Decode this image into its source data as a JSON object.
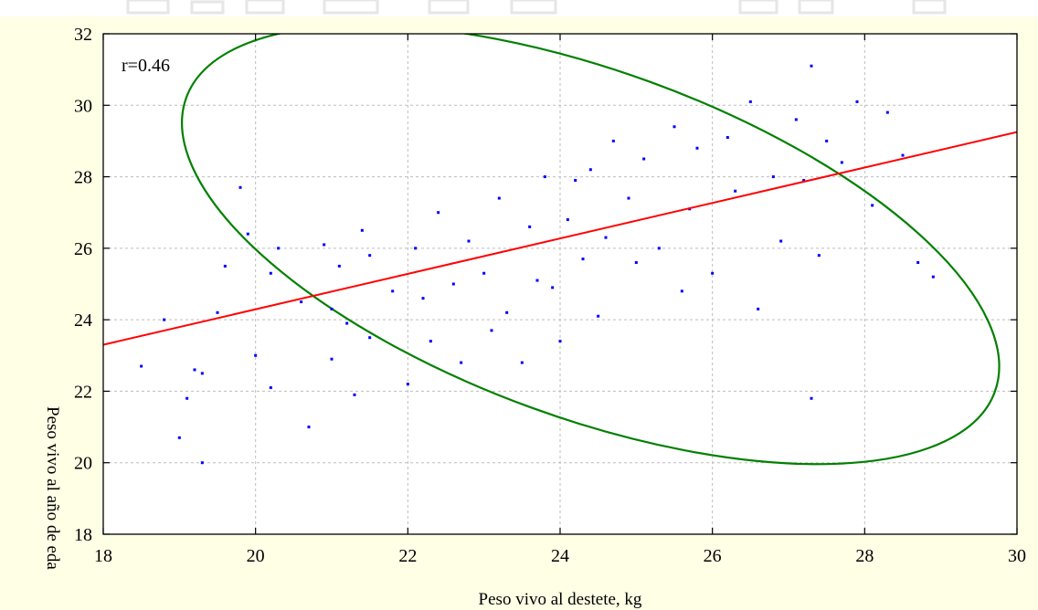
{
  "chart_data": {
    "type": "scatter",
    "xlabel": "Peso vivo al destete, kg",
    "ylabel": "Peso vivo al año de eda",
    "annotation": "r=0.46",
    "xlim": [
      18,
      30
    ],
    "ylim": [
      18,
      32
    ],
    "xticks": [
      18,
      20,
      22,
      24,
      26,
      28,
      30
    ],
    "yticks": [
      18,
      20,
      22,
      24,
      26,
      28,
      30,
      32
    ],
    "grid": true,
    "colors": {
      "points": "#0000ff",
      "regression": "#ff0000",
      "ellipse": "#008000",
      "background": "#ffffe6",
      "plot_area": "#ffffff"
    },
    "regression_line": {
      "x": [
        18,
        30
      ],
      "y": [
        23.3,
        29.25
      ]
    },
    "confidence_ellipse": {
      "center": [
        24.4,
        26.1
      ],
      "semi_x": 5.65,
      "semi_y": 4.85,
      "angle_deg": 20,
      "level": "95%"
    },
    "points": {
      "x": [
        18.5,
        18.8,
        19.0,
        19.1,
        19.2,
        19.3,
        19.3,
        19.5,
        19.6,
        19.8,
        19.9,
        20.0,
        20.2,
        20.2,
        20.3,
        20.6,
        20.7,
        20.9,
        21.0,
        21.0,
        21.1,
        21.2,
        21.3,
        21.4,
        21.5,
        21.5,
        21.8,
        22.0,
        22.1,
        22.2,
        22.3,
        22.4,
        22.6,
        22.7,
        22.8,
        23.0,
        23.1,
        23.2,
        23.3,
        23.5,
        23.6,
        23.7,
        23.8,
        23.9,
        24.0,
        24.1,
        24.2,
        24.3,
        24.4,
        24.5,
        24.6,
        24.7,
        24.9,
        25.0,
        25.1,
        25.3,
        25.5,
        25.6,
        25.7,
        25.8,
        26.0,
        26.2,
        26.3,
        26.5,
        26.6,
        26.8,
        26.9,
        27.1,
        27.2,
        27.3,
        27.4,
        27.5,
        27.7,
        27.9,
        28.1,
        28.3,
        28.5,
        28.7,
        28.9,
        27.3
      ],
      "y": [
        22.7,
        24.0,
        20.7,
        21.8,
        22.6,
        20.0,
        22.5,
        24.2,
        25.5,
        27.7,
        26.4,
        23.0,
        22.1,
        25.3,
        26.0,
        24.5,
        21.0,
        26.1,
        24.3,
        22.9,
        25.5,
        23.9,
        21.9,
        26.5,
        25.8,
        23.5,
        24.8,
        22.2,
        26.0,
        24.6,
        23.4,
        27.0,
        25.0,
        22.8,
        26.2,
        25.3,
        23.7,
        27.4,
        24.2,
        22.8,
        26.6,
        25.1,
        28.0,
        24.9,
        23.4,
        26.8,
        27.9,
        25.7,
        28.2,
        24.1,
        26.3,
        29.0,
        27.4,
        25.6,
        28.5,
        26.0,
        29.4,
        24.8,
        27.1,
        28.8,
        25.3,
        29.1,
        27.6,
        30.1,
        24.3,
        28.0,
        26.2,
        29.6,
        27.9,
        31.1,
        25.8,
        29.0,
        28.4,
        30.1,
        27.2,
        29.8,
        28.6,
        25.6,
        25.2,
        21.8
      ]
    }
  }
}
